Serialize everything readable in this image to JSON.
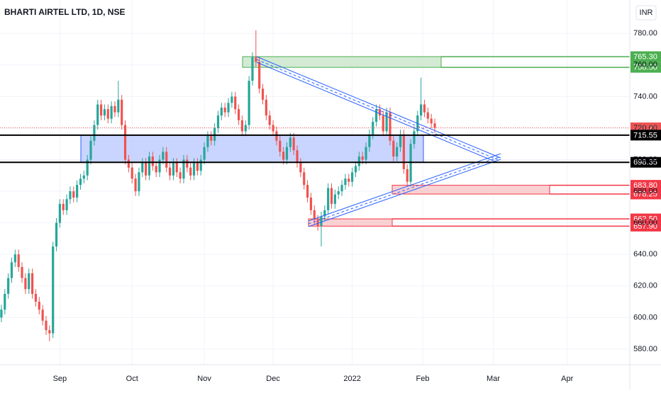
{
  "chart_data": {
    "type": "candlestick",
    "title": "BHARTI AIRTEL LTD, 1D, NSE",
    "currency": "INR",
    "up_color": "#26a69a",
    "down_color": "#ef5350",
    "grid": true,
    "ylim": [
      570.12,
      801.18
    ],
    "yticks": [
      {
        "value": 580,
        "label": "580.00"
      },
      {
        "value": 600,
        "label": "600.00"
      },
      {
        "value": 620,
        "label": "620.00"
      },
      {
        "value": 640,
        "label": "640.00"
      },
      {
        "value": 660,
        "label": "660.00"
      },
      {
        "value": 680,
        "label": "680.00"
      },
      {
        "value": 700,
        "label": "700.00"
      },
      {
        "value": 720,
        "label": "720.00"
      },
      {
        "value": 740,
        "label": "740.00"
      },
      {
        "value": 760,
        "label": "760.00"
      },
      {
        "value": 780,
        "label": "780.00"
      }
    ],
    "xlim": [
      -0.4,
      182.7
    ],
    "xticks": [
      {
        "value": 17,
        "label": "Sep"
      },
      {
        "value": 38,
        "label": "Oct"
      },
      {
        "value": 59,
        "label": "Nov"
      },
      {
        "value": 79,
        "label": "Dec"
      },
      {
        "value": 102,
        "label": "2022"
      },
      {
        "value": 122.5,
        "label": "Feb"
      },
      {
        "value": 143,
        "label": "Mar"
      },
      {
        "value": 164.5,
        "label": "Apr"
      }
    ],
    "levels": [
      {
        "value": 765.3,
        "label": "765.30",
        "color": "#4caf50"
      },
      {
        "value": 758.5,
        "label": "758.50",
        "color": "#4caf50"
      },
      {
        "value": 720.2,
        "label": "720.20",
        "color": "#ef5350"
      },
      {
        "value": 715.55,
        "label": "715.55",
        "color": "#000000"
      },
      {
        "value": 698.35,
        "label": "698.35",
        "color": "#000000"
      },
      {
        "value": 683.8,
        "label": "683.80",
        "color": "#f23645"
      },
      {
        "value": 678.25,
        "label": "678.25",
        "color": "#f23645"
      },
      {
        "value": 662.5,
        "label": "662.50",
        "color": "#f23645"
      },
      {
        "value": 657.9,
        "label": "657.90",
        "color": "#f23645"
      }
    ],
    "candles": [
      [
        600,
        608,
        597,
        605
      ],
      [
        605,
        618,
        602,
        615
      ],
      [
        615,
        628,
        612,
        625
      ],
      [
        625,
        638,
        622,
        635
      ],
      [
        635,
        643,
        632,
        640
      ],
      [
        640,
        643,
        629,
        632
      ],
      [
        632,
        635,
        622,
        625
      ],
      [
        625,
        628,
        615,
        618
      ],
      [
        618,
        631,
        615,
        628
      ],
      [
        628,
        631,
        612,
        615
      ],
      [
        615,
        618,
        607,
        610
      ],
      [
        610,
        613,
        602,
        605
      ],
      [
        605,
        608,
        595,
        598
      ],
      [
        598,
        601,
        589,
        592
      ],
      [
        592,
        595,
        585,
        590
      ],
      [
        590,
        648,
        587,
        645
      ],
      [
        645,
        663,
        642,
        660
      ],
      [
        660,
        675,
        657,
        672
      ],
      [
        672,
        675,
        665,
        668
      ],
      [
        668,
        678,
        665,
        675
      ],
      [
        675,
        683,
        672,
        680
      ],
      [
        680,
        683,
        673,
        676
      ],
      [
        676,
        687,
        673,
        684
      ],
      [
        684,
        691,
        681,
        688
      ],
      [
        688,
        693,
        685,
        690
      ],
      [
        690,
        703,
        687,
        700
      ],
      [
        700,
        715,
        697,
        712
      ],
      [
        712,
        725,
        709,
        722
      ],
      [
        722,
        738,
        719,
        735
      ],
      [
        735,
        738,
        725,
        728
      ],
      [
        728,
        735,
        725,
        732
      ],
      [
        732,
        735,
        723,
        726
      ],
      [
        726,
        737,
        723,
        734
      ],
      [
        734,
        737,
        727,
        730
      ],
      [
        730,
        750,
        727,
        738
      ],
      [
        738,
        741,
        719,
        722
      ],
      [
        722,
        725,
        697,
        700
      ],
      [
        700,
        703,
        692,
        695
      ],
      [
        695,
        698,
        685,
        688
      ],
      [
        688,
        691,
        677,
        680
      ],
      [
        680,
        695,
        677,
        692
      ],
      [
        692,
        701,
        689,
        698
      ],
      [
        698,
        701,
        687,
        690
      ],
      [
        690,
        705,
        687,
        702
      ],
      [
        702,
        705,
        693,
        696
      ],
      [
        696,
        699,
        689,
        692
      ],
      [
        692,
        703,
        689,
        700
      ],
      [
        700,
        708,
        697,
        705
      ],
      [
        705,
        708,
        692,
        695
      ],
      [
        695,
        698,
        687,
        690
      ],
      [
        690,
        701,
        687,
        698
      ],
      [
        698,
        701,
        689,
        692
      ],
      [
        692,
        695,
        685,
        688
      ],
      [
        688,
        703,
        685,
        700
      ],
      [
        700,
        703,
        692,
        695
      ],
      [
        695,
        698,
        687,
        690
      ],
      [
        690,
        701,
        687,
        698
      ],
      [
        698,
        701,
        690,
        693
      ],
      [
        693,
        703,
        690,
        700
      ],
      [
        700,
        711,
        697,
        708
      ],
      [
        708,
        718,
        705,
        715
      ],
      [
        715,
        718,
        709,
        712
      ],
      [
        712,
        723,
        709,
        720
      ],
      [
        720,
        731,
        717,
        728
      ],
      [
        728,
        736,
        725,
        733
      ],
      [
        733,
        736,
        727,
        730
      ],
      [
        730,
        739,
        727,
        736
      ],
      [
        736,
        743,
        733,
        740
      ],
      [
        740,
        743,
        729,
        732
      ],
      [
        732,
        735,
        722,
        725
      ],
      [
        725,
        728,
        715,
        718
      ],
      [
        718,
        725,
        715,
        722
      ],
      [
        722,
        753,
        719,
        750
      ],
      [
        750,
        768,
        747,
        765
      ],
      [
        765,
        782,
        759,
        762
      ],
      [
        762,
        765,
        742,
        745
      ],
      [
        745,
        748,
        735,
        738
      ],
      [
        738,
        741,
        725,
        728
      ],
      [
        728,
        731,
        719,
        722
      ],
      [
        722,
        725,
        715,
        718
      ],
      [
        718,
        721,
        709,
        712
      ],
      [
        712,
        715,
        702,
        705
      ],
      [
        705,
        708,
        697,
        700
      ],
      [
        700,
        711,
        697,
        708
      ],
      [
        708,
        717,
        705,
        714
      ],
      [
        714,
        717,
        703,
        706
      ],
      [
        706,
        709,
        695,
        698
      ],
      [
        698,
        701,
        689,
        692
      ],
      [
        692,
        695,
        681,
        684
      ],
      [
        684,
        687,
        673,
        676
      ],
      [
        676,
        679,
        665,
        668
      ],
      [
        668,
        671,
        659,
        662
      ],
      [
        662,
        665,
        655,
        658
      ],
      [
        658,
        667,
        645,
        664
      ],
      [
        664,
        671,
        661,
        668
      ],
      [
        668,
        685,
        665,
        682
      ],
      [
        682,
        685,
        669,
        672
      ],
      [
        672,
        681,
        669,
        678
      ],
      [
        678,
        683,
        675,
        680
      ],
      [
        680,
        687,
        677,
        684
      ],
      [
        684,
        691,
        681,
        688
      ],
      [
        688,
        691,
        683,
        686
      ],
      [
        686,
        695,
        683,
        692
      ],
      [
        692,
        699,
        689,
        696
      ],
      [
        696,
        705,
        693,
        702
      ],
      [
        702,
        705,
        697,
        700
      ],
      [
        700,
        711,
        697,
        708
      ],
      [
        708,
        719,
        705,
        716
      ],
      [
        716,
        727,
        713,
        724
      ],
      [
        724,
        735,
        721,
        732
      ],
      [
        732,
        735,
        725,
        728
      ],
      [
        728,
        731,
        715,
        718
      ],
      [
        718,
        733,
        715,
        730
      ],
      [
        730,
        733,
        709,
        712
      ],
      [
        712,
        715,
        699,
        702
      ],
      [
        702,
        711,
        699,
        708
      ],
      [
        708,
        719,
        705,
        716
      ],
      [
        716,
        719,
        691,
        694
      ],
      [
        694,
        697,
        683,
        686
      ],
      [
        686,
        713,
        683,
        710
      ],
      [
        710,
        721,
        707,
        718
      ],
      [
        718,
        731,
        715,
        728
      ],
      [
        728,
        752,
        725,
        735
      ],
      [
        735,
        738,
        727,
        730
      ],
      [
        730,
        733,
        723,
        726
      ],
      [
        726,
        729,
        720,
        723
      ],
      [
        723,
        726,
        717,
        720.2
      ]
    ]
  }
}
